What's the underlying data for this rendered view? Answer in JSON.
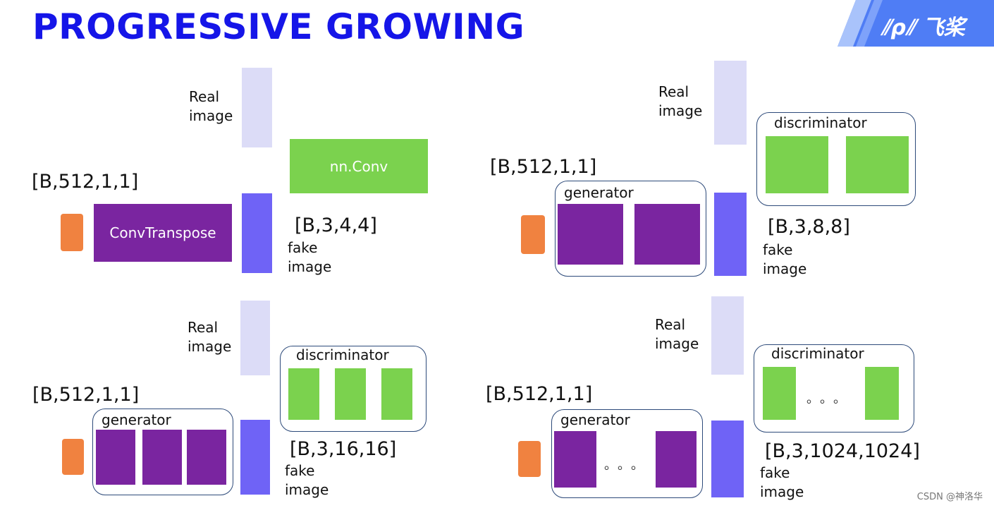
{
  "title": "PROGRESSIVE GROWING",
  "brand": {
    "logo_text": "飞桨",
    "accent": "#1515e8"
  },
  "labels": {
    "real_line1": "Real",
    "real_line2": "image",
    "fake_line1": "fake",
    "fake_line2": "image",
    "generator": "generator",
    "discriminator": "discriminator",
    "conv_transpose": "ConvTranspose",
    "nn_conv": "nn.Conv",
    "dots": "。。。"
  },
  "stages": [
    {
      "input_shape": "[B,512,1,1]",
      "output_shape": "[B,3,4,4]"
    },
    {
      "input_shape": "[B,512,1,1]",
      "output_shape": "[B,3,8,8]"
    },
    {
      "input_shape": "[B,512,1,1]",
      "output_shape": "[B,3,16,16]"
    },
    {
      "input_shape": "[B,512,1,1]",
      "output_shape": "[B,3,1024,1024]"
    }
  ],
  "footer": "CSDN @神洛华"
}
